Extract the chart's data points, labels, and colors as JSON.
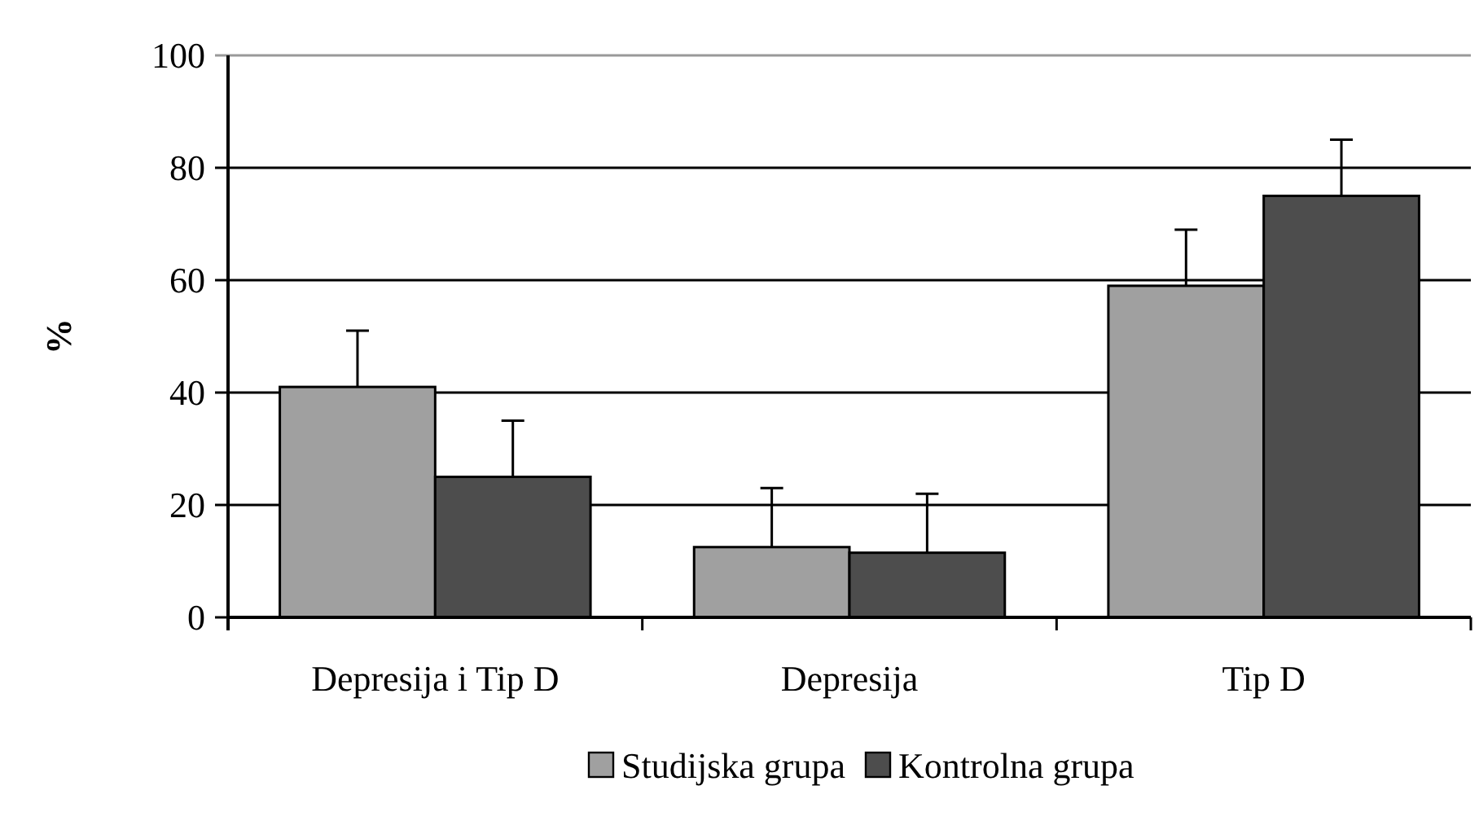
{
  "chart_data": {
    "type": "bar",
    "ylabel": "%",
    "categories": [
      "Depresija i Tip D",
      "Depresija",
      "Tip D"
    ],
    "series": [
      {
        "name": "Studijska grupa",
        "color": "#a0a0a0",
        "values": [
          41,
          12.5,
          59
        ],
        "errors": [
          [
            41,
            51
          ],
          [
            12.5,
            23
          ],
          [
            59,
            69
          ]
        ]
      },
      {
        "name": "Kontrolna grupa",
        "color": "#4d4d4d",
        "values": [
          25,
          11.5,
          75
        ],
        "errors": [
          [
            25,
            35
          ],
          [
            11.5,
            22
          ],
          [
            75,
            85
          ]
        ]
      }
    ],
    "ylim": [
      0,
      100
    ],
    "yticks": [
      0,
      20,
      40,
      60,
      80,
      100
    ],
    "grid": "y",
    "legend": "bottom"
  }
}
